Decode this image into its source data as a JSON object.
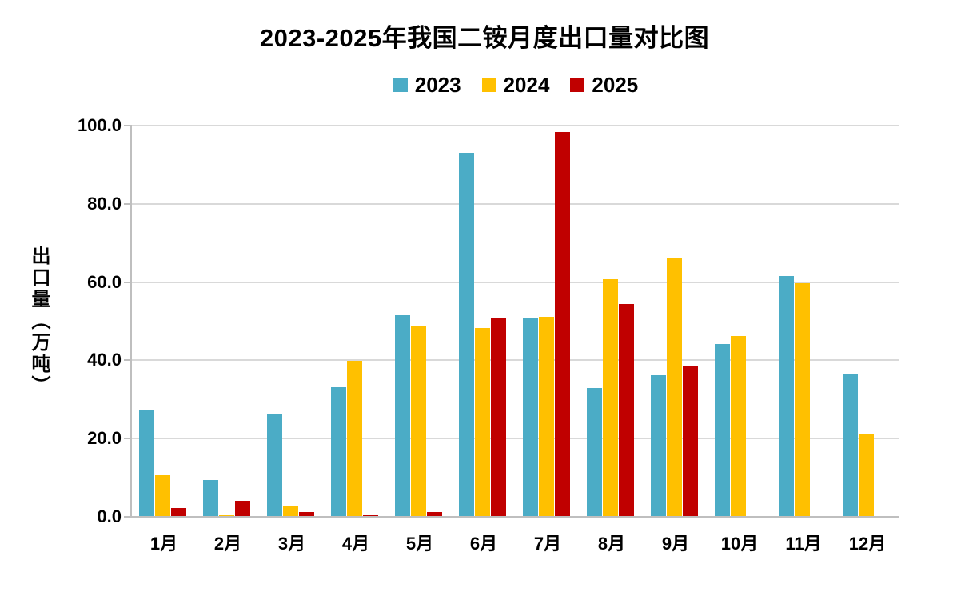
{
  "title": "2023-2025年我国二铵月度出口量对比图",
  "y_axis_title": "出口量（万吨）",
  "legend": {
    "items": [
      {
        "label": "2023",
        "color": "#4BACC6"
      },
      {
        "label": "2024",
        "color": "#FFC000"
      },
      {
        "label": "2025",
        "color": "#C00000"
      }
    ]
  },
  "y_tick_labels": [
    "100.0",
    "80.0",
    "60.0",
    "40.0",
    "20.0",
    "0.0"
  ],
  "chart_data": {
    "type": "bar",
    "title": "2023-2025年我国二铵月度出口量对比图",
    "categories": [
      "1月",
      "2月",
      "3月",
      "4月",
      "5月",
      "6月",
      "7月",
      "8月",
      "9月",
      "10月",
      "11月",
      "12月"
    ],
    "series": [
      {
        "name": "2023",
        "color": "#4BACC6",
        "values": [
          27.4,
          9.5,
          26.1,
          33.1,
          51.5,
          93.0,
          51.0,
          33.0,
          36.2,
          44.2,
          61.5,
          36.7
        ]
      },
      {
        "name": "2024",
        "color": "#FFC000",
        "values": [
          10.6,
          0.5,
          2.7,
          39.9,
          48.6,
          48.3,
          51.2,
          60.7,
          66.0,
          46.2,
          59.8,
          21.3
        ]
      },
      {
        "name": "2025",
        "color": "#C00000",
        "values": [
          2.2,
          4.0,
          1.2,
          0.4,
          1.2,
          50.7,
          98.3,
          54.5,
          38.5,
          null,
          null,
          null
        ]
      }
    ],
    "xlabel": "",
    "ylabel": "出口量（万吨）",
    "ylim": [
      0,
      100
    ],
    "ytick_step": 20,
    "grid": true,
    "legend_position": "top-center"
  },
  "colors": {
    "bar_2023": "#4BACC6",
    "bar_2024": "#FFC000",
    "bar_2025": "#C00000",
    "gridline": "#D9D9D9",
    "axis_line": "#BFBFBF",
    "text": "#000000",
    "background": "#FFFFFF"
  }
}
